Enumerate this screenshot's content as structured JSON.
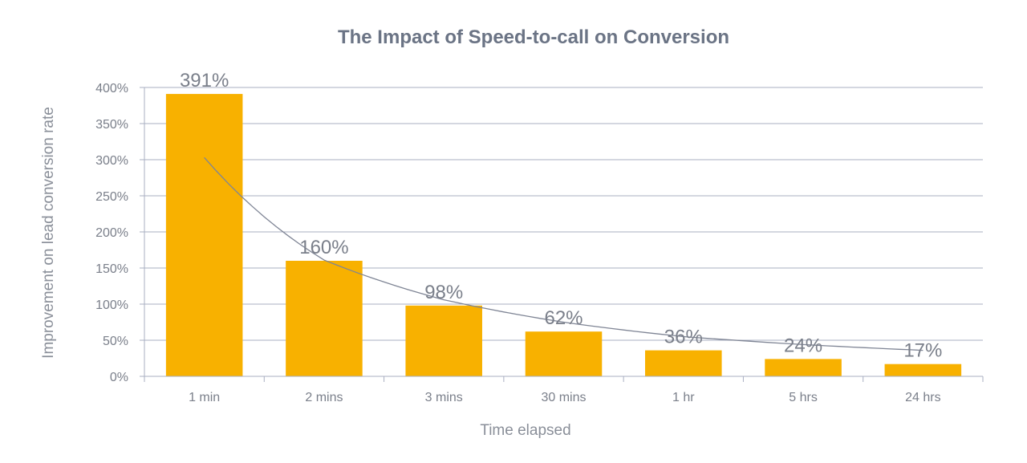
{
  "chart_data": {
    "type": "bar",
    "title": "The Impact of Speed-to-call on Conversion",
    "xlabel": "Time elapsed",
    "ylabel": "Improvement  on lead conversion rate",
    "categories": [
      "1 min",
      "2 mins",
      "3 mins",
      "30 mins",
      "1 hr",
      "5 hrs",
      "24 hrs"
    ],
    "values": [
      391,
      160,
      98,
      62,
      36,
      24,
      17
    ],
    "data_labels": [
      "391%",
      "160%",
      "98%",
      "62%",
      "36%",
      "24%",
      "17%"
    ],
    "y_ticks": [
      0,
      50,
      100,
      150,
      200,
      250,
      300,
      350,
      400
    ],
    "y_tick_labels": [
      "0%",
      "50%",
      "100%",
      "150%",
      "200%",
      "250%",
      "300%",
      "350%",
      "400%"
    ],
    "ylim": [
      0,
      400
    ],
    "grid": true,
    "trendline": {
      "type": "power",
      "values": [
        303,
        161,
        106,
        75,
        55,
        44,
        36
      ]
    },
    "colors": {
      "bar": "#F8B100",
      "grid": "#A9AFC2",
      "text": "#7A7F8A",
      "title": "#6B7485",
      "trend": "#7F8595"
    }
  }
}
